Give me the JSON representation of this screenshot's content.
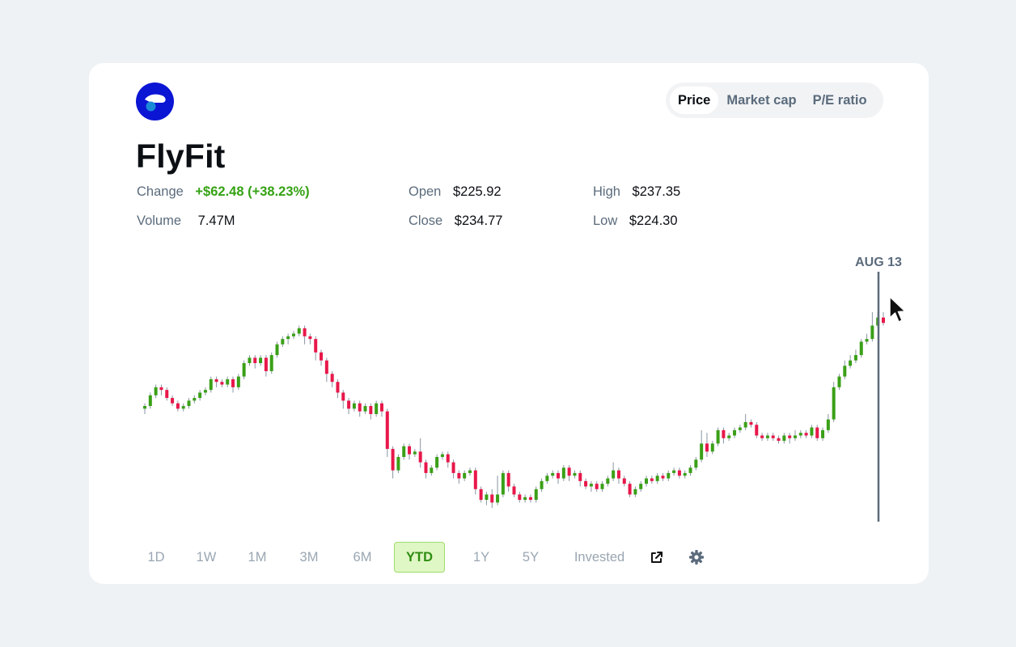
{
  "company": {
    "name": "FlyFit"
  },
  "metric_tabs": [
    "Price",
    "Market cap",
    "P/E ratio"
  ],
  "active_metric": "Price",
  "stats": {
    "change": {
      "label": "Change",
      "value": "+$62.48 (+38.23%)"
    },
    "volume": {
      "label": "Volume",
      "value": "7.47M"
    },
    "open": {
      "label": "Open",
      "value": "$225.92"
    },
    "close": {
      "label": "Close",
      "value": "$234.77"
    },
    "high": {
      "label": "High",
      "value": "$237.35"
    },
    "low": {
      "label": "Low",
      "value": "$224.30"
    }
  },
  "ranges": [
    "1D",
    "1W",
    "1M",
    "3M",
    "6M",
    "YTD",
    "1Y",
    "5Y",
    "Invested"
  ],
  "active_range": "YTD",
  "icons": {
    "share": "share-icon",
    "settings": "gear-icon",
    "logo": "flyfit-logo"
  },
  "colors": {
    "up": "#3aa017",
    "down": "#e8174a",
    "accent": "#0b15d4",
    "crosshair": "#5b6b7c"
  },
  "chart_data": {
    "type": "candlestick",
    "hover_label": "AUG 13",
    "candles": [
      [
        168,
        169,
        166,
        170
      ],
      [
        169,
        173,
        168,
        174
      ],
      [
        173,
        176,
        172,
        177
      ],
      [
        176,
        175,
        173,
        177
      ],
      [
        175,
        172,
        171,
        176
      ],
      [
        172,
        170,
        169,
        173
      ],
      [
        170,
        168,
        167,
        171
      ],
      [
        168,
        169,
        167,
        170
      ],
      [
        169,
        171,
        168,
        172
      ],
      [
        171,
        172,
        170,
        173
      ],
      [
        172,
        174,
        171,
        175
      ],
      [
        174,
        175,
        173,
        176
      ],
      [
        175,
        179,
        174,
        180
      ],
      [
        179,
        178,
        176,
        180
      ],
      [
        178,
        177,
        176,
        179
      ],
      [
        177,
        179,
        176,
        180
      ],
      [
        179,
        176,
        174,
        180
      ],
      [
        176,
        180,
        175,
        181
      ],
      [
        180,
        185,
        179,
        186
      ],
      [
        185,
        187,
        184,
        188
      ],
      [
        187,
        185,
        183,
        188
      ],
      [
        185,
        187,
        184,
        188
      ],
      [
        187,
        182,
        180,
        188
      ],
      [
        182,
        188,
        181,
        189
      ],
      [
        188,
        192,
        187,
        193
      ],
      [
        192,
        194,
        191,
        195
      ],
      [
        194,
        195,
        192,
        196
      ],
      [
        195,
        196,
        194,
        197
      ],
      [
        196,
        198,
        195,
        199
      ],
      [
        198,
        195,
        192,
        199
      ],
      [
        195,
        194,
        192,
        196
      ],
      [
        194,
        189,
        186,
        195
      ],
      [
        189,
        186,
        184,
        190
      ],
      [
        186,
        181,
        178,
        187
      ],
      [
        181,
        178,
        176,
        182
      ],
      [
        178,
        174,
        172,
        179
      ],
      [
        174,
        171,
        168,
        175
      ],
      [
        171,
        168,
        166,
        172
      ],
      [
        168,
        170,
        167,
        171
      ],
      [
        170,
        167,
        165,
        171
      ],
      [
        167,
        169,
        166,
        170
      ],
      [
        169,
        166,
        164,
        170
      ],
      [
        166,
        170,
        165,
        171
      ],
      [
        170,
        167,
        165,
        171
      ],
      [
        167,
        153,
        150,
        168
      ],
      [
        153,
        145,
        142,
        154
      ],
      [
        145,
        150,
        144,
        151
      ],
      [
        150,
        154,
        149,
        155
      ],
      [
        154,
        151,
        149,
        155
      ],
      [
        151,
        152,
        150,
        153
      ],
      [
        152,
        148,
        146,
        157
      ],
      [
        148,
        144,
        142,
        149
      ],
      [
        144,
        146,
        143,
        147
      ],
      [
        146,
        150,
        145,
        151
      ],
      [
        150,
        151,
        149,
        152
      ],
      [
        151,
        148,
        146,
        152
      ],
      [
        148,
        144,
        142,
        149
      ],
      [
        144,
        142,
        140,
        145
      ],
      [
        142,
        144,
        141,
        145
      ],
      [
        144,
        145,
        143,
        146
      ],
      [
        145,
        138,
        136,
        146
      ],
      [
        138,
        134,
        133,
        139
      ],
      [
        134,
        136,
        132,
        137
      ],
      [
        136,
        133,
        131,
        138
      ],
      [
        133,
        136,
        132,
        143
      ],
      [
        136,
        144,
        135,
        145
      ],
      [
        144,
        139,
        137,
        145
      ],
      [
        139,
        136,
        135,
        140
      ],
      [
        136,
        134,
        133,
        137
      ],
      [
        134,
        135,
        133,
        136
      ],
      [
        135,
        134,
        133,
        136
      ],
      [
        134,
        138,
        133,
        139
      ],
      [
        138,
        141,
        137,
        142
      ],
      [
        141,
        143,
        140,
        144
      ],
      [
        143,
        144,
        142,
        145
      ],
      [
        144,
        142,
        140,
        145
      ],
      [
        142,
        146,
        141,
        147
      ],
      [
        146,
        143,
        141,
        147
      ],
      [
        143,
        144,
        142,
        145
      ],
      [
        144,
        141,
        139,
        145
      ],
      [
        141,
        139,
        138,
        142
      ],
      [
        139,
        140,
        137,
        141
      ],
      [
        140,
        138,
        137,
        141
      ],
      [
        138,
        140,
        137,
        141
      ],
      [
        140,
        142,
        139,
        143
      ],
      [
        142,
        145,
        141,
        148
      ],
      [
        145,
        142,
        140,
        146
      ],
      [
        142,
        140,
        139,
        143
      ],
      [
        140,
        136,
        135,
        141
      ],
      [
        136,
        138,
        135,
        139
      ],
      [
        138,
        140,
        137,
        141
      ],
      [
        140,
        142,
        139,
        143
      ],
      [
        142,
        141,
        140,
        143
      ],
      [
        141,
        143,
        140,
        144
      ],
      [
        143,
        142,
        141,
        144
      ],
      [
        142,
        144,
        141,
        145
      ],
      [
        144,
        145,
        143,
        146
      ],
      [
        145,
        143,
        142,
        146
      ],
      [
        143,
        144,
        142,
        145
      ],
      [
        144,
        146,
        143,
        147
      ],
      [
        146,
        149,
        145,
        150
      ],
      [
        149,
        155,
        148,
        160
      ],
      [
        155,
        152,
        150,
        159
      ],
      [
        152,
        155,
        151,
        156
      ],
      [
        155,
        160,
        154,
        161
      ],
      [
        160,
        157,
        155,
        161
      ],
      [
        157,
        158,
        156,
        159
      ],
      [
        158,
        160,
        157,
        161
      ],
      [
        160,
        161,
        159,
        162
      ],
      [
        161,
        163,
        160,
        166
      ],
      [
        163,
        162,
        161,
        164
      ],
      [
        162,
        158,
        157,
        163
      ],
      [
        158,
        157,
        156,
        159
      ],
      [
        157,
        158,
        156,
        159
      ],
      [
        158,
        157,
        156,
        159
      ],
      [
        157,
        156,
        155,
        158
      ],
      [
        156,
        158,
        155,
        159
      ],
      [
        158,
        157,
        155,
        159
      ],
      [
        157,
        158,
        156,
        160
      ],
      [
        158,
        159,
        157,
        160
      ],
      [
        159,
        158,
        157,
        160
      ],
      [
        158,
        161,
        157,
        162
      ],
      [
        161,
        157,
        156,
        162
      ],
      [
        157,
        160,
        156,
        161
      ],
      [
        160,
        164,
        159,
        166
      ],
      [
        164,
        176,
        163,
        178
      ],
      [
        176,
        180,
        175,
        181
      ],
      [
        180,
        184,
        179,
        186
      ],
      [
        184,
        186,
        183,
        188
      ],
      [
        186,
        188,
        185,
        190
      ],
      [
        188,
        193,
        187,
        194
      ],
      [
        193,
        194,
        192,
        196
      ],
      [
        194,
        199,
        193,
        204
      ],
      [
        199,
        202,
        198,
        204
      ],
      [
        202,
        200,
        199,
        204
      ]
    ]
  }
}
